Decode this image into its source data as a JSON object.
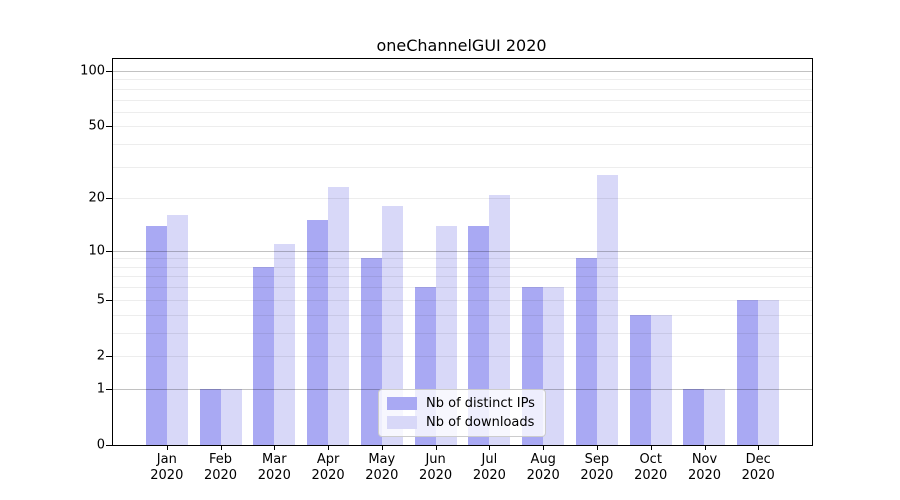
{
  "chart_data": {
    "type": "bar",
    "title": "oneChannelGUI 2020",
    "year_label": "2020",
    "categories": [
      "Jan",
      "Feb",
      "Mar",
      "Apr",
      "May",
      "Jun",
      "Jul",
      "Aug",
      "Sep",
      "Oct",
      "Nov",
      "Dec"
    ],
    "series": [
      {
        "name": "Nb of distinct IPs",
        "color": "#a9a9f3",
        "values": [
          14,
          1,
          8,
          15,
          9,
          6,
          14,
          6,
          9,
          4,
          1,
          5
        ]
      },
      {
        "name": "Nb of downloads",
        "color": "#d8d8f8",
        "values": [
          16,
          1,
          11,
          23,
          18,
          14,
          21,
          6,
          27,
          4,
          1,
          5
        ]
      }
    ],
    "y_axis": {
      "scale": "log1p",
      "ticks": [
        0,
        1,
        2,
        5,
        10,
        20,
        50,
        100
      ],
      "major_gridlines": [
        1,
        10,
        100
      ],
      "minor_gridlines": [
        2,
        3,
        4,
        5,
        6,
        7,
        8,
        9,
        20,
        30,
        40,
        50,
        60,
        70,
        80,
        90
      ],
      "ylim": [
        0,
        116
      ]
    },
    "legend_position": "bottom-center"
  },
  "colors": {
    "background": "#ffffff",
    "frame": "#000000",
    "text": "#000000",
    "grid_major": "rgba(0,0,0,0.24)",
    "grid_minor": "rgba(0,0,0,0.07)",
    "legend_border": "#cccccc",
    "legend_background": "rgba(255,255,255,0.8)"
  }
}
